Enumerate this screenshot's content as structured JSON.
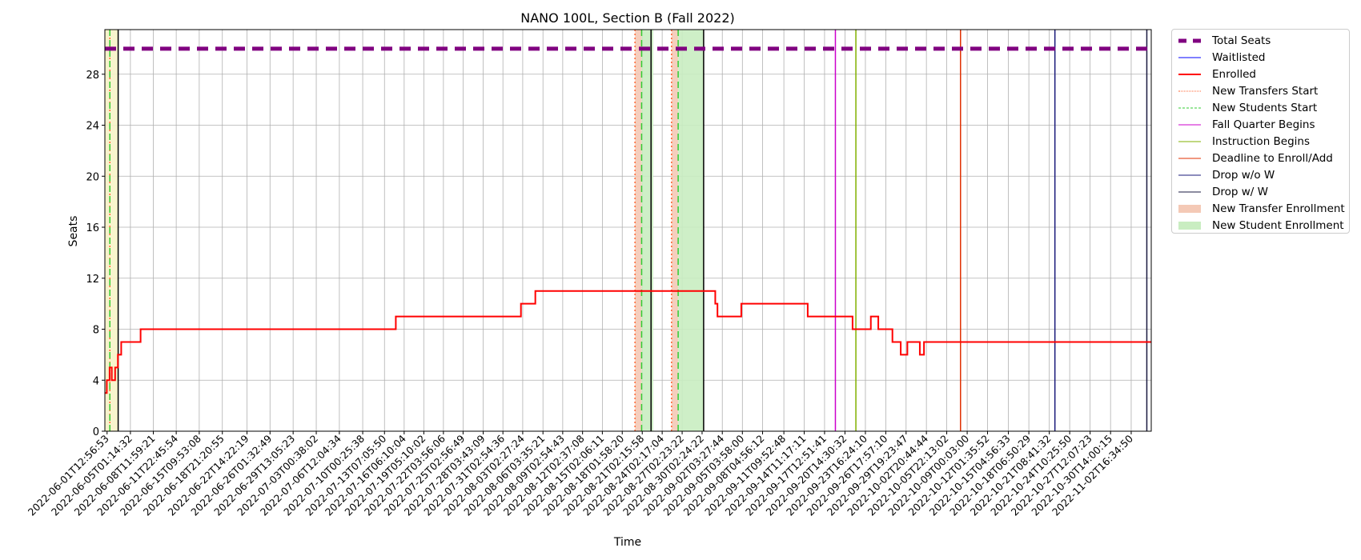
{
  "chart_data": {
    "type": "line",
    "title": "NANO 100L, Section B (Fall 2022)",
    "xlabel": "Time",
    "ylabel": "Seats",
    "x_range": [
      "2022-06-01T05:00:00",
      "2022-11-05T17:00:00"
    ],
    "ylim": [
      0,
      31.5
    ],
    "yticks": [
      0,
      4,
      8,
      12,
      16,
      20,
      24,
      28
    ],
    "grid": true,
    "legend_position": "outside-right-top",
    "xtick_labels": [
      "2022-06-01T12:56:53",
      "2022-06-05T01:14:32",
      "2022-06-08T11:59:21",
      "2022-06-11T22:45:54",
      "2022-06-15T09:53:08",
      "2022-06-18T21:20:55",
      "2022-06-22T14:22:19",
      "2022-06-26T01:32:49",
      "2022-06-29T13:05:23",
      "2022-07-03T00:38:02",
      "2022-07-06T12:04:34",
      "2022-07-10T00:25:38",
      "2022-07-13T07:05:50",
      "2022-07-16T06:10:04",
      "2022-07-19T05:10:02",
      "2022-07-22T03:56:06",
      "2022-07-25T02:56:49",
      "2022-07-28T03:43:09",
      "2022-07-31T02:54:36",
      "2022-08-03T02:27:24",
      "2022-08-06T03:35:21",
      "2022-08-09T02:54:43",
      "2022-08-12T02:37:08",
      "2022-08-15T02:06:11",
      "2022-08-18T01:58:20",
      "2022-08-21T02:15:58",
      "2022-08-24T02:17:04",
      "2022-08-27T02:23:22",
      "2022-08-30T02:24:22",
      "2022-09-02T03:27:44",
      "2022-09-05T03:58:00",
      "2022-09-08T04:56:12",
      "2022-09-11T09:52:48",
      "2022-09-14T11:17:11",
      "2022-09-17T12:51:41",
      "2022-09-20T14:30:32",
      "2022-09-23T16:24:10",
      "2022-09-26T17:57:10",
      "2022-09-29T19:23:47",
      "2022-10-02T20:44:44",
      "2022-10-05T22:13:02",
      "2022-10-09T00:03:00",
      "2022-10-12T01:35:52",
      "2022-10-15T04:56:33",
      "2022-10-18T06:50:29",
      "2022-10-21T08:41:32",
      "2022-10-24T10:25:50",
      "2022-10-27T12:07:23",
      "2022-10-30T14:00:15",
      "2022-11-02T16:34:50"
    ],
    "series": [
      {
        "name": "Total Seats",
        "color": "#800080",
        "style": "dashed",
        "width": 5,
        "x": [
          "2022-06-01T05:00:00",
          "2022-11-05T17:00:00"
        ],
        "y": [
          30,
          30
        ]
      },
      {
        "name": "Waitlisted",
        "color": "#0000ff",
        "style": "solid",
        "width": 1,
        "x": [
          "2022-06-01T05:00:00",
          "2022-11-05T17:00:00"
        ],
        "y": [
          0,
          0
        ]
      },
      {
        "name": "Enrolled",
        "color": "#ff0000",
        "style": "solid",
        "width": 2,
        "step": true,
        "x": [
          "2022-06-01T05:00:00",
          "2022-06-01T12:00:00",
          "2022-06-01T22:00:00",
          "2022-06-02T06:00:00",
          "2022-06-02T18:00:00",
          "2022-06-03T04:00:00",
          "2022-06-03T16:00:00",
          "2022-06-06T14:00:00",
          "2022-07-15T00:00:00",
          "2022-08-02T20:00:00",
          "2022-08-05T00:00:00",
          "2022-09-01T02:00:00",
          "2022-09-01T10:00:00",
          "2022-09-05T00:00:00",
          "2022-09-15T00:00:00",
          "2022-09-21T18:00:00",
          "2022-09-24T12:00:00",
          "2022-09-25T15:00:00",
          "2022-09-27T18:00:00",
          "2022-09-29T00:00:00",
          "2022-09-30T00:00:00",
          "2022-10-01T21:00:00",
          "2022-10-02T12:00:00",
          "2022-10-03T00:00:00",
          "2022-11-05T17:00:00"
        ],
        "y": [
          3,
          4,
          5,
          4,
          5,
          6,
          7,
          8,
          9,
          10,
          11,
          10,
          9,
          10,
          9,
          8,
          9,
          8,
          7,
          6,
          7,
          6,
          7,
          7,
          7
        ]
      }
    ],
    "vertical_lines": [
      {
        "name": "New Transfers Start",
        "color": "#ff6633",
        "style": "dotted",
        "x": [
          "2022-06-01T23:00:00",
          "2022-08-20T00:00:00",
          "2022-08-25T12:00:00"
        ]
      },
      {
        "name": "New Students Start",
        "color": "#33cc33",
        "style": "dashed",
        "x": [
          "2022-06-01T23:00:00",
          "2022-08-21T00:00:00",
          "2022-08-26T12:00:00"
        ]
      },
      {
        "name": "Fall Quarter Begins",
        "color": "#cc00cc",
        "style": "solid",
        "x": [
          "2022-09-19T04:00:00"
        ]
      },
      {
        "name": "Instruction Begins",
        "color": "#80b000",
        "style": "solid",
        "x": [
          "2022-09-22T06:00:00"
        ]
      },
      {
        "name": "Deadline to Enroll/Add",
        "color": "#e03000",
        "style": "solid",
        "x": [
          "2022-10-08T00:00:00"
        ]
      },
      {
        "name": "Drop w/o W",
        "color": "#1a1a7a",
        "style": "solid",
        "x": [
          "2022-10-22T05:00:00"
        ]
      },
      {
        "name": "Drop w/ W",
        "color": "#1a1a40",
        "style": "solid",
        "x": [
          "2022-11-05T01:00:00"
        ]
      },
      {
        "name": "",
        "color": "#000000",
        "style": "solid",
        "x": [
          "2022-06-03T05:00:00",
          "2022-08-22T10:00:00",
          "2022-08-30T08:00:00"
        ]
      }
    ],
    "spans": [
      {
        "name": "New Transfer Enrollment",
        "color": "#f4c9b6",
        "ranges": [
          [
            "2022-08-20T00:00:00",
            "2022-08-21T00:00:00"
          ],
          [
            "2022-08-25T12:00:00",
            "2022-08-26T12:00:00"
          ]
        ]
      },
      {
        "name": "New Student Enrollment",
        "color": "#c9edc1",
        "ranges": [
          [
            "2022-08-21T00:00:00",
            "2022-08-22T18:00:00"
          ],
          [
            "2022-08-26T12:00:00",
            "2022-08-30T08:00:00"
          ]
        ]
      },
      {
        "name": "",
        "color": "#f7f3c8",
        "ranges": [
          [
            "2022-06-01T05:00:00",
            "2022-06-03T05:00:00"
          ]
        ]
      }
    ]
  },
  "legend": {
    "items": [
      {
        "label": "Total Seats",
        "kind": "line",
        "color": "#800080",
        "style": "dashed",
        "width": 5
      },
      {
        "label": "Waitlisted",
        "kind": "line",
        "color": "#0000ff",
        "style": "solid",
        "width": 1
      },
      {
        "label": "Enrolled",
        "kind": "line",
        "color": "#ff0000",
        "style": "solid",
        "width": 2
      },
      {
        "label": "New Transfers Start",
        "kind": "line",
        "color": "#ff6633",
        "style": "dotted",
        "width": 1.5
      },
      {
        "label": "New Students Start",
        "kind": "line",
        "color": "#33cc33",
        "style": "dashed",
        "width": 1.5
      },
      {
        "label": "Fall Quarter Begins",
        "kind": "line",
        "color": "#cc00cc",
        "style": "solid",
        "width": 1.5
      },
      {
        "label": "Instruction Begins",
        "kind": "line",
        "color": "#80b000",
        "style": "solid",
        "width": 1.5
      },
      {
        "label": "Deadline to Enroll/Add",
        "kind": "line",
        "color": "#e03000",
        "style": "solid",
        "width": 1.5
      },
      {
        "label": "Drop w/o W",
        "kind": "line",
        "color": "#1a1a7a",
        "style": "solid",
        "width": 1.5
      },
      {
        "label": "Drop w/ W",
        "kind": "line",
        "color": "#1a1a40",
        "style": "solid",
        "width": 1.5
      },
      {
        "label": "New Transfer Enrollment",
        "kind": "patch",
        "color": "#f4c9b6"
      },
      {
        "label": "New Student Enrollment",
        "kind": "patch",
        "color": "#c9edc1"
      }
    ]
  }
}
